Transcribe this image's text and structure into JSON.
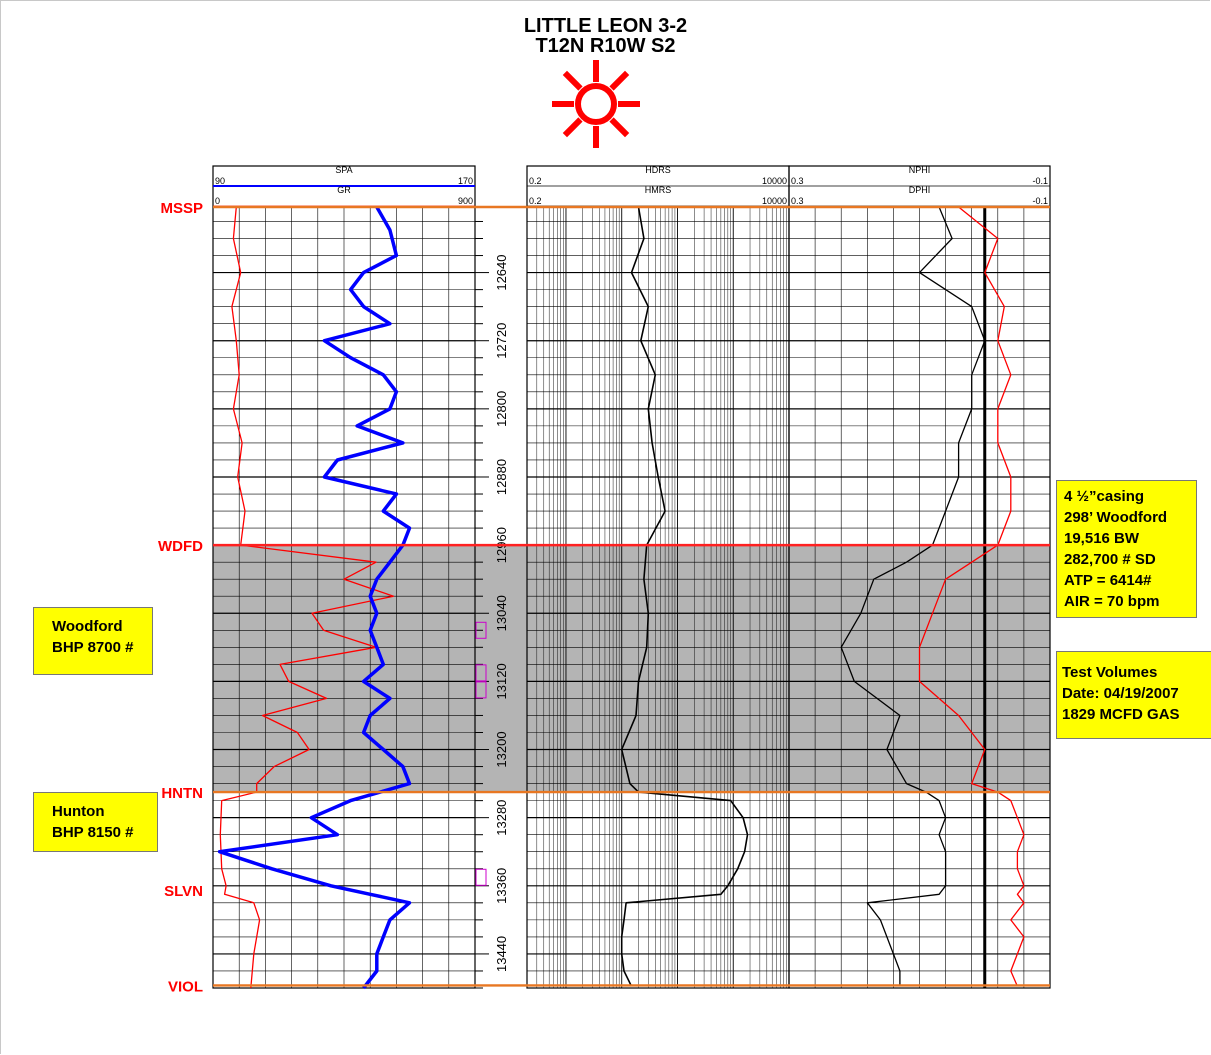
{
  "title": {
    "line1": "LITTLE LEON 3-2",
    "line2": "T12N R10W S2"
  },
  "well_symbol": "gas-well-icon",
  "colors": {
    "title_symbol": "#ff0000",
    "spa_curve": "#0000ff",
    "gr_curve": "#ff0000",
    "formation_label": "#ff0000",
    "formation_line": "#e87722",
    "shaded_zone": "#b4b4b4",
    "callout_bg": "#ffff00",
    "perf_marker": "#cc00cc"
  },
  "callouts": {
    "woodford_bhp": [
      "Woodford",
      "BHP 8700 #"
    ],
    "hunton_bhp": [
      "Hunton",
      "BHP 8150 #"
    ],
    "completion": [
      "4 ½”casing",
      "298’ Woodford",
      "19,516 BW",
      "282,700 # SD",
      "ATP = 6414#",
      "AIR = 70 bpm"
    ],
    "test": [
      "Test Volumes",
      "Date: 04/19/2007",
      "1829 MCFD GAS"
    ]
  },
  "chart_data": {
    "type": "line",
    "title": "LITTLE LEON 3-2 T12N R10W S2",
    "depth_axis": {
      "range": [
        12563,
        13480
      ],
      "tick_labels": [
        12640,
        12720,
        12800,
        12880,
        12960,
        13040,
        13120,
        13200,
        13280,
        13360,
        13440
      ],
      "minor_step": 20
    },
    "tracks": [
      {
        "name": "track1",
        "scales": [
          {
            "curve": "SPA",
            "min": "90",
            "max": "170",
            "color": "#0000ff"
          },
          {
            "curve": "GR",
            "min": "0",
            "max": "900",
            "color": "#ff0000"
          }
        ]
      },
      {
        "name": "track2",
        "scale_type": "log",
        "scales": [
          {
            "curve": "HDRS",
            "min": "0.2",
            "max": "10000"
          },
          {
            "curve": "HMRS",
            "min": "0.2",
            "max": "10000"
          }
        ]
      },
      {
        "name": "track3",
        "scales": [
          {
            "curve": "NPHI",
            "min": "0.3",
            "max": "-0.1"
          },
          {
            "curve": "DPHI",
            "min": "0.3",
            "max": "-0.1"
          }
        ]
      }
    ],
    "formation_tops": [
      {
        "name": "MSSP",
        "depth": 12563
      },
      {
        "name": "WDFD",
        "depth": 12960
      },
      {
        "name": "HNTN",
        "depth": 13250
      },
      {
        "name": "SLVN",
        "depth": 13365
      },
      {
        "name": "VIOL",
        "depth": 13477
      }
    ],
    "shaded_interval": {
      "top": 12960,
      "base": 13250
    },
    "perf_markers": [
      {
        "label": "p1",
        "depth": 13060
      },
      {
        "label": "p2",
        "depth": 13110
      },
      {
        "label": "p3",
        "depth": 13130
      },
      {
        "label": "p4",
        "depth": 13350
      }
    ],
    "series": [
      {
        "name": "SPA",
        "depth": [
          12563,
          12590,
          12620,
          12640,
          12660,
          12680,
          12700,
          12720,
          12740,
          12760,
          12780,
          12800,
          12820,
          12840,
          12860,
          12880,
          12900,
          12920,
          12940,
          12960,
          12980,
          13000,
          13020,
          13040,
          13060,
          13080,
          13100,
          13120,
          13140,
          13160,
          13180,
          13200,
          13220,
          13240,
          13260,
          13280,
          13300,
          13320,
          13340,
          13360,
          13370,
          13380,
          13400,
          13420,
          13440,
          13460,
          13480
        ],
        "values": [
          140,
          144,
          146,
          136,
          132,
          136,
          144,
          124,
          132,
          142,
          146,
          144,
          134,
          148,
          128,
          124,
          146,
          142,
          150,
          148,
          144,
          140,
          138,
          140,
          138,
          140,
          142,
          136,
          144,
          138,
          136,
          142,
          148,
          150,
          132,
          120,
          128,
          92,
          108,
          126,
          138,
          150,
          144,
          142,
          140,
          140,
          136
        ]
      },
      {
        "name": "GR",
        "depth": [
          12563,
          12600,
          12640,
          12680,
          12720,
          12760,
          12800,
          12840,
          12880,
          12920,
          12960,
          12980,
          13000,
          13020,
          13040,
          13060,
          13080,
          13100,
          13120,
          13140,
          13160,
          13180,
          13200,
          13220,
          13240,
          13250,
          13260,
          13300,
          13340,
          13360,
          13370,
          13380,
          13400,
          13440,
          13480
        ],
        "values": [
          80,
          70,
          95,
          65,
          80,
          90,
          70,
          100,
          85,
          110,
          95,
          560,
          450,
          620,
          340,
          380,
          560,
          230,
          260,
          390,
          170,
          290,
          330,
          210,
          150,
          150,
          30,
          25,
          30,
          45,
          40,
          140,
          160,
          140,
          130
        ]
      },
      {
        "name": "HDRS",
        "depth": [
          12563,
          12600,
          12640,
          12680,
          12720,
          12760,
          12800,
          12840,
          12880,
          12920,
          12960,
          13000,
          13040,
          13080,
          13120,
          13160,
          13200,
          13240,
          13250,
          13260,
          13280,
          13300,
          13320,
          13340,
          13360,
          13370,
          13380,
          13400,
          13420,
          13440,
          13460,
          13478
        ],
        "values": [
          20,
          25,
          15,
          30,
          22,
          40,
          30,
          35,
          45,
          60,
          28,
          25,
          30,
          28,
          20,
          18,
          10,
          14,
          20,
          900,
          1500,
          1800,
          1600,
          1200,
          800,
          600,
          12,
          11,
          10,
          10,
          11,
          15
        ]
      },
      {
        "name": "NPHI",
        "depth": [
          12563,
          12600,
          12640,
          12680,
          12720,
          12760,
          12800,
          12840,
          12880,
          12920,
          12960,
          12980,
          13000,
          13040,
          13080,
          13120,
          13160,
          13200,
          13240,
          13250,
          13260,
          13280,
          13300,
          13320,
          13340,
          13360,
          13370,
          13380,
          13400,
          13420,
          13440,
          13460,
          13478
        ],
        "values": [
          0.07,
          0.05,
          0.1,
          0.02,
          0.0,
          0.02,
          0.02,
          0.04,
          0.04,
          0.06,
          0.08,
          0.12,
          0.17,
          0.19,
          0.22,
          0.2,
          0.13,
          0.15,
          0.12,
          0.09,
          0.07,
          0.06,
          0.07,
          0.06,
          0.06,
          0.06,
          0.07,
          0.18,
          0.16,
          0.15,
          0.14,
          0.13,
          0.13
        ]
      },
      {
        "name": "DPHI",
        "depth": [
          12563,
          12600,
          12640,
          12680,
          12720,
          12760,
          12800,
          12840,
          12880,
          12920,
          12960,
          12980,
          13000,
          13040,
          13080,
          13120,
          13160,
          13200,
          13240,
          13250,
          13260,
          13280,
          13300,
          13320,
          13340,
          13360,
          13370,
          13380,
          13400,
          13420,
          13440,
          13460,
          13478
        ],
        "values": [
          0.04,
          -0.02,
          0.0,
          -0.03,
          -0.02,
          -0.04,
          -0.02,
          -0.02,
          -0.04,
          -0.04,
          -0.02,
          0.02,
          0.06,
          0.08,
          0.1,
          0.1,
          0.04,
          0.0,
          0.02,
          -0.02,
          -0.04,
          -0.05,
          -0.06,
          -0.05,
          -0.05,
          -0.06,
          -0.05,
          -0.06,
          -0.04,
          -0.06,
          -0.05,
          -0.04,
          -0.05
        ]
      }
    ]
  }
}
